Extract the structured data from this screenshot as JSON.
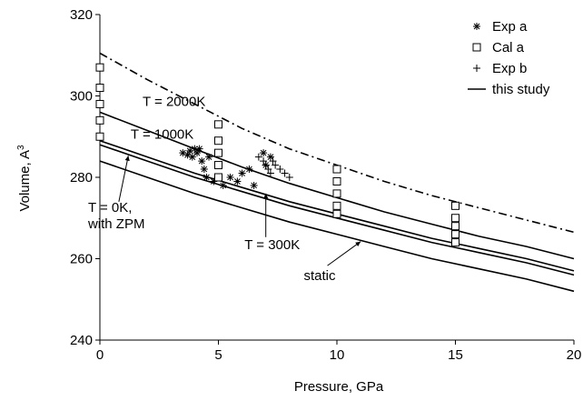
{
  "chart_data": {
    "type": "scatter",
    "title": "",
    "xlabel": "Pressure, GPa",
    "ylabel_main": "Volume, A",
    "ylabel_sup": "3",
    "xlim": [
      0,
      20
    ],
    "ylim": [
      240,
      320
    ],
    "xticks": [
      "0",
      "5",
      "10",
      "15",
      "20"
    ],
    "yticks": [
      "240",
      "260",
      "280",
      "300",
      "320"
    ],
    "grid": false,
    "legend_position": "top-right",
    "legend": [
      {
        "marker": "asterisk",
        "label": "Exp a"
      },
      {
        "marker": "square",
        "label": "Cal a"
      },
      {
        "marker": "plus",
        "label": "Exp b"
      },
      {
        "marker": "line",
        "label": "this study"
      }
    ],
    "series": [
      {
        "name": "Exp a",
        "marker": "asterisk",
        "points": [
          [
            3.5,
            286
          ],
          [
            3.7,
            285.5
          ],
          [
            3.8,
            286.5
          ],
          [
            3.9,
            285
          ],
          [
            4.0,
            287
          ],
          [
            4.1,
            286
          ],
          [
            4.2,
            287
          ],
          [
            4.3,
            284
          ],
          [
            4.4,
            282
          ],
          [
            4.5,
            280
          ],
          [
            4.6,
            285
          ],
          [
            4.8,
            279
          ],
          [
            5.2,
            278
          ],
          [
            5.5,
            280
          ],
          [
            5.8,
            279
          ],
          [
            6.0,
            281
          ],
          [
            6.3,
            282
          ],
          [
            6.5,
            278
          ],
          [
            6.9,
            286
          ],
          [
            7.0,
            283
          ],
          [
            7.2,
            285
          ]
        ]
      },
      {
        "name": "Cal a",
        "marker": "square",
        "points": [
          [
            0,
            307
          ],
          [
            0,
            302
          ],
          [
            0,
            298
          ],
          [
            0,
            294
          ],
          [
            0,
            290
          ],
          [
            5,
            293
          ],
          [
            5,
            289
          ],
          [
            5,
            286
          ],
          [
            5,
            283
          ],
          [
            5,
            280
          ],
          [
            10,
            282
          ],
          [
            10,
            279
          ],
          [
            10,
            276
          ],
          [
            10,
            273
          ],
          [
            10,
            271
          ],
          [
            15,
            273
          ],
          [
            15,
            270
          ],
          [
            15,
            268
          ],
          [
            15,
            266
          ],
          [
            15,
            264
          ]
        ]
      },
      {
        "name": "Exp b",
        "marker": "plus",
        "points": [
          [
            6.7,
            285
          ],
          [
            6.9,
            284
          ],
          [
            7.0,
            283
          ],
          [
            7.1,
            282
          ],
          [
            7.2,
            281
          ],
          [
            7.4,
            283
          ],
          [
            7.6,
            282
          ],
          [
            7.8,
            281
          ],
          [
            8.0,
            280
          ],
          [
            7.3,
            284
          ]
        ]
      },
      {
        "name": "this study",
        "curve": "T = 2000K",
        "style": "dash-dot",
        "points": [
          [
            0,
            310.5
          ],
          [
            2,
            304
          ],
          [
            4,
            298
          ],
          [
            6,
            292
          ],
          [
            8,
            287
          ],
          [
            10,
            283
          ],
          [
            12,
            279
          ],
          [
            14,
            275.5
          ],
          [
            16,
            272.5
          ],
          [
            18,
            269.5
          ],
          [
            20,
            266.5
          ]
        ]
      },
      {
        "name": "this study",
        "curve": "T = 1000K",
        "style": "solid",
        "points": [
          [
            0,
            296
          ],
          [
            2,
            291.5
          ],
          [
            4,
            287
          ],
          [
            6,
            282.5
          ],
          [
            8,
            278.5
          ],
          [
            10,
            275
          ],
          [
            12,
            271.5
          ],
          [
            14,
            268.5
          ],
          [
            16,
            265.5
          ],
          [
            18,
            263
          ],
          [
            20,
            260
          ]
        ]
      },
      {
        "name": "this study",
        "curve": "T = 300K",
        "style": "solid",
        "points": [
          [
            0,
            289
          ],
          [
            2,
            285
          ],
          [
            4,
            281
          ],
          [
            6,
            277.5
          ],
          [
            8,
            274
          ],
          [
            10,
            271
          ],
          [
            12,
            268
          ],
          [
            14,
            265
          ],
          [
            16,
            262.5
          ],
          [
            18,
            260
          ],
          [
            20,
            257
          ]
        ]
      },
      {
        "name": "this study",
        "curve": "T = 0K, with ZPM",
        "style": "solid",
        "points": [
          [
            0,
            288
          ],
          [
            2,
            284
          ],
          [
            4,
            280
          ],
          [
            6,
            276.5
          ],
          [
            8,
            273
          ],
          [
            10,
            270
          ],
          [
            12,
            267
          ],
          [
            14,
            264
          ],
          [
            16,
            261.5
          ],
          [
            18,
            259
          ],
          [
            20,
            256
          ]
        ]
      },
      {
        "name": "this study",
        "curve": "static",
        "style": "solid",
        "points": [
          [
            0,
            284
          ],
          [
            2,
            280
          ],
          [
            4,
            276
          ],
          [
            6,
            272.5
          ],
          [
            8,
            269
          ],
          [
            10,
            266
          ],
          [
            12,
            263
          ],
          [
            14,
            260
          ],
          [
            16,
            257.5
          ],
          [
            18,
            255
          ],
          [
            20,
            252
          ]
        ]
      }
    ],
    "annotations": [
      {
        "text": "T = 2000K",
        "x": 1.8,
        "y": 297.5
      },
      {
        "text": "T = 1000K",
        "x": 1.3,
        "y": 289.5
      },
      {
        "text": "T = 0K,",
        "x": -0.5,
        "y": 271.5
      },
      {
        "text": "with ZPM",
        "x": -0.5,
        "y": 267.5
      },
      {
        "text": "T = 300K",
        "x": 6.1,
        "y": 262.3
      },
      {
        "text": "static",
        "x": 8.6,
        "y": 254.8
      }
    ]
  }
}
